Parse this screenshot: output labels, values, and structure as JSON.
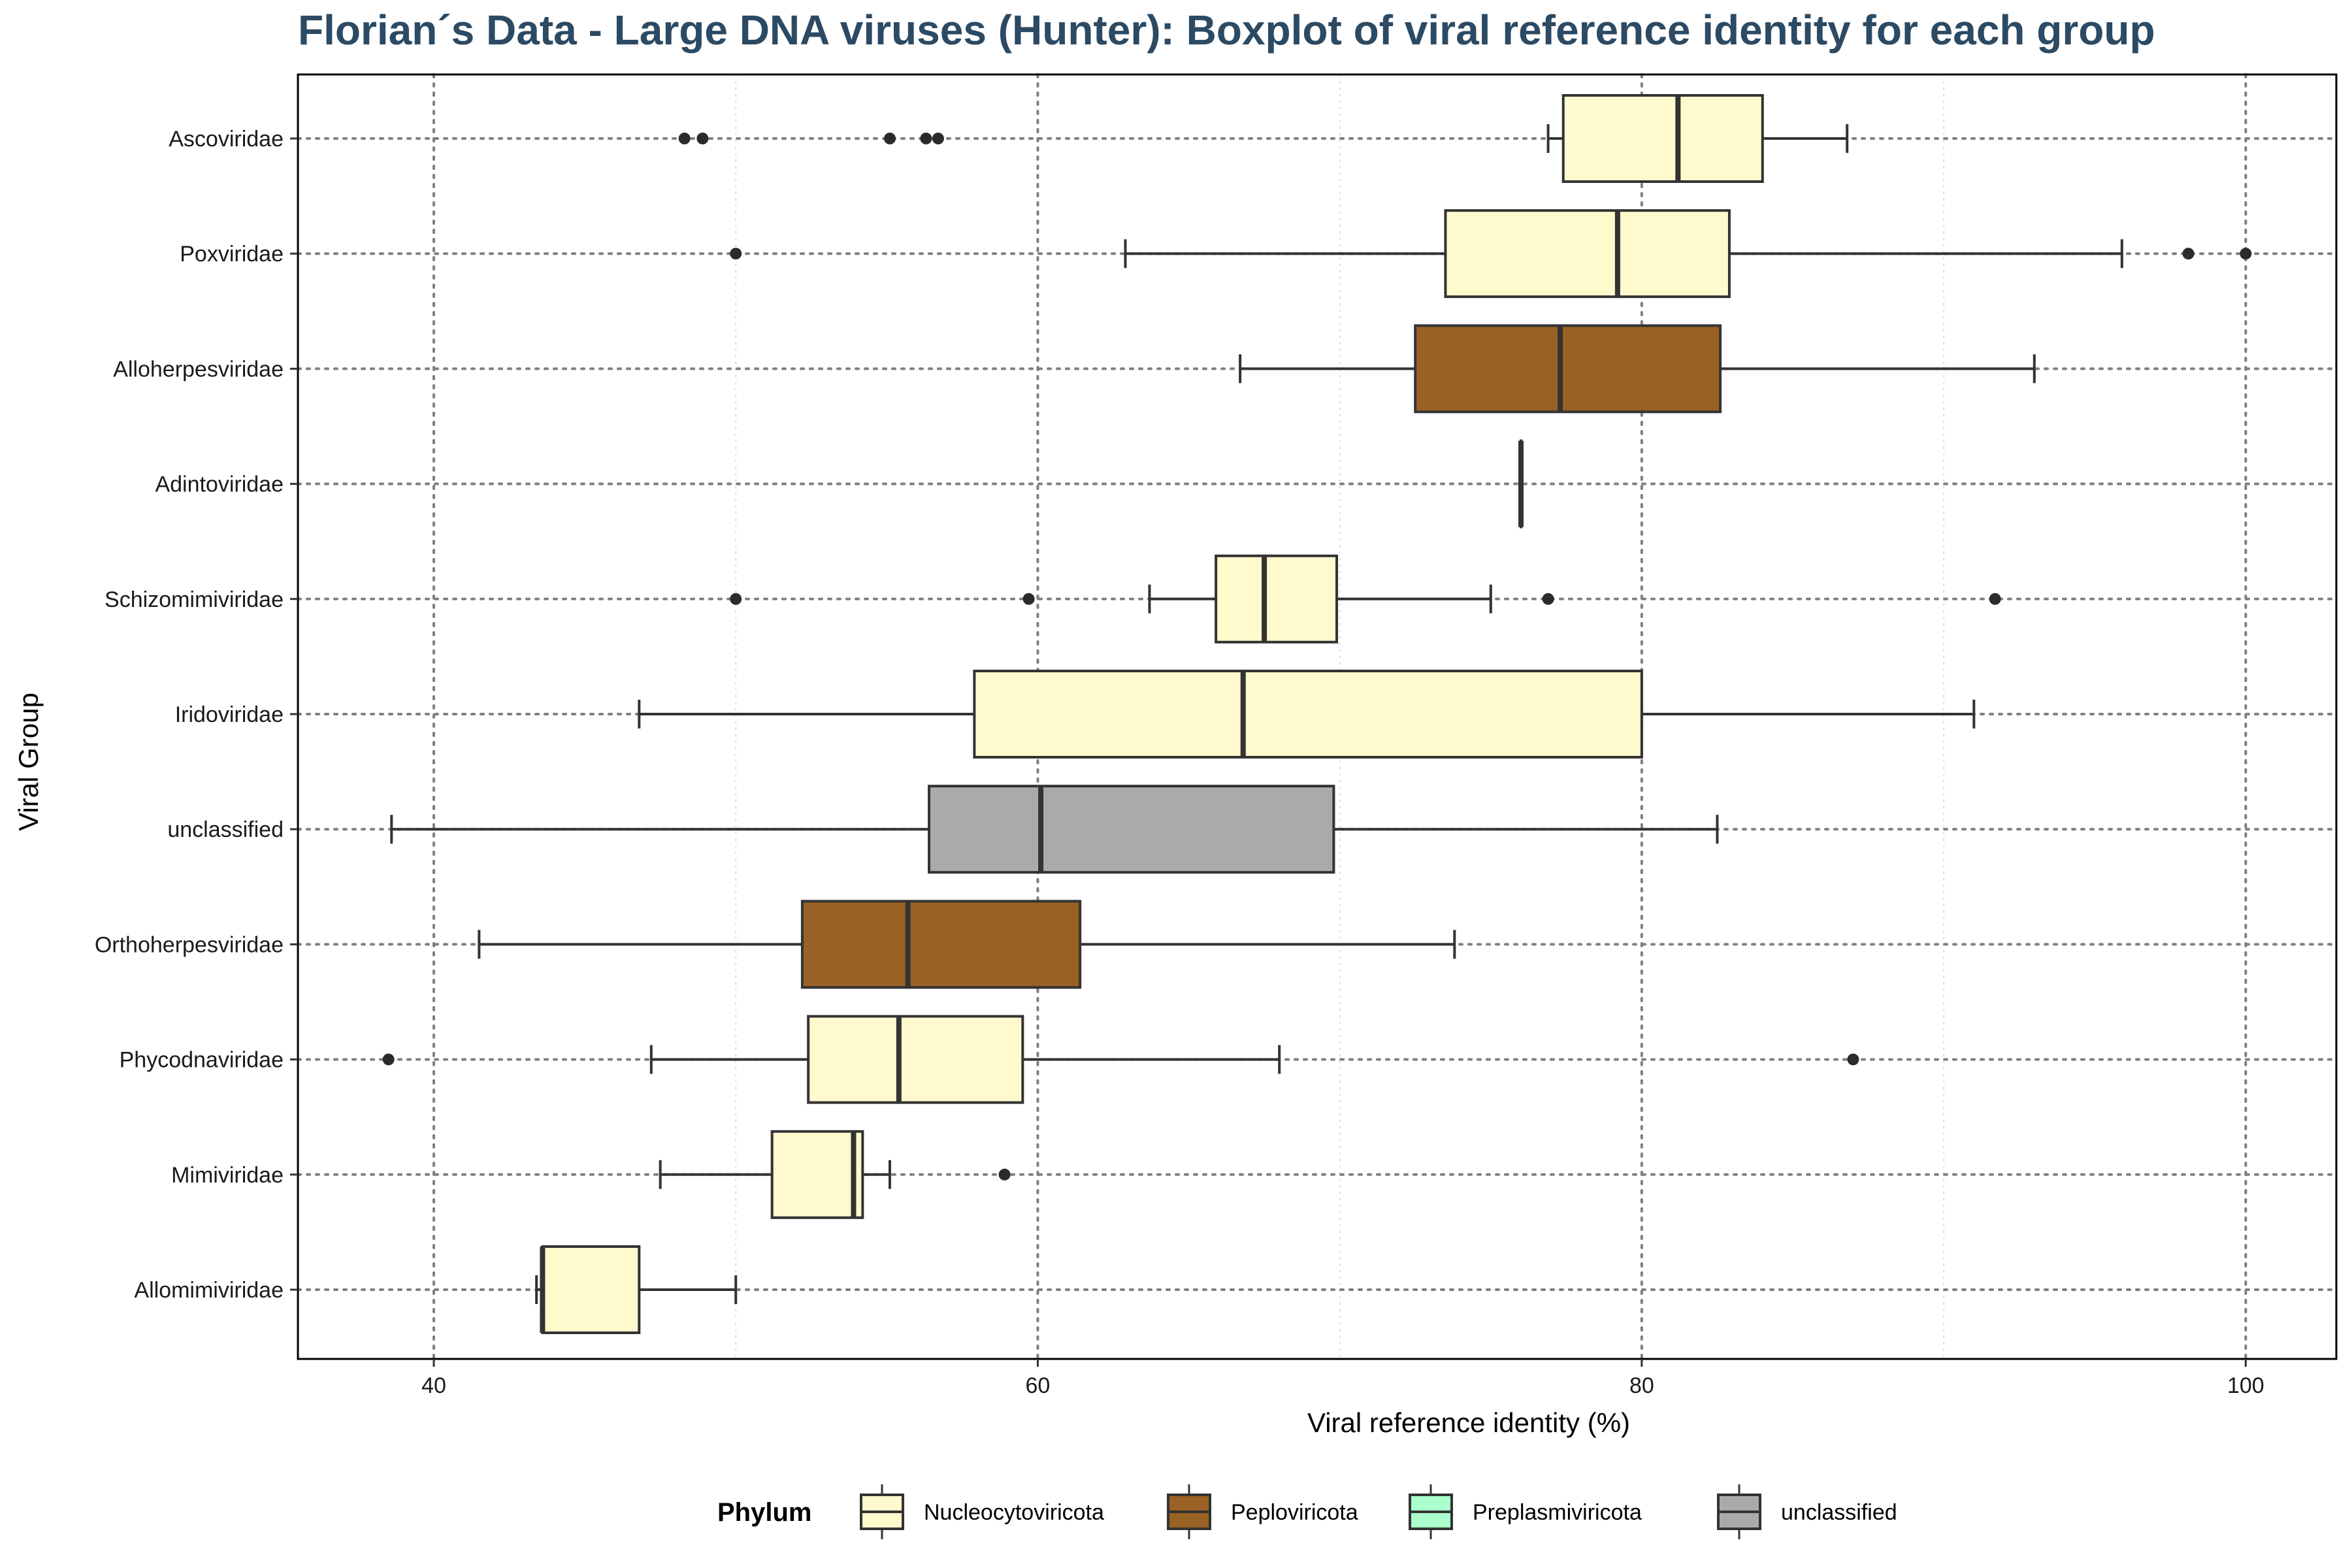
{
  "chart_data": {
    "type": "boxplot",
    "title": "Florian´s Data - Large DNA viruses (Hunter): Boxplot of viral reference identity for each group",
    "xlabel": "Viral reference identity (%)",
    "ylabel": "Viral Group",
    "xlim": [
      35.5,
      103.0
    ],
    "x_ticks": [
      40,
      60,
      80,
      100
    ],
    "grid": "on",
    "legend": {
      "title": "Phylum",
      "placement": "bottom",
      "entries": [
        {
          "label": "Nucleocytoviricota",
          "color": "#fffacd"
        },
        {
          "label": "Peploviricota",
          "color": "#9a6124"
        },
        {
          "label": "Preplasmiviricota",
          "color": "#aaffcc"
        },
        {
          "label": "unclassified",
          "color": "#aaaaaa"
        }
      ]
    },
    "groups": [
      {
        "name": "Ascoviridae",
        "phylum": "Nucleocytoviricota",
        "whisker_low": 76.9,
        "q1": 77.4,
        "median": 81.2,
        "q3": 84.0,
        "whisker_high": 86.8,
        "outliers": [
          48.3,
          48.9,
          55.1,
          56.3,
          56.7
        ]
      },
      {
        "name": "Poxviridae",
        "phylum": "Nucleocytoviricota",
        "whisker_low": 62.9,
        "q1": 73.5,
        "median": 79.2,
        "q3": 82.9,
        "whisker_high": 95.9,
        "outliers": [
          50.0,
          98.1,
          100.0
        ]
      },
      {
        "name": "Alloherpesviridae",
        "phylum": "Peploviricota",
        "whisker_low": 66.7,
        "q1": 72.5,
        "median": 77.3,
        "q3": 82.6,
        "whisker_high": 93.0,
        "outliers": []
      },
      {
        "name": "Adintoviridae",
        "phylum": "Preplasmiviricota",
        "whisker_low": 76.0,
        "q1": 76.0,
        "median": 76.0,
        "q3": 76.0,
        "whisker_high": 76.0,
        "outliers": []
      },
      {
        "name": "Schizomimiviridae",
        "phylum": "Nucleocytoviricota",
        "whisker_low": 63.7,
        "q1": 65.9,
        "median": 67.5,
        "q3": 69.9,
        "whisker_high": 75.0,
        "outliers": [
          50.0,
          59.7,
          76.9,
          91.7
        ]
      },
      {
        "name": "Iridoviridae",
        "phylum": "Nucleocytoviricota",
        "whisker_low": 46.8,
        "q1": 57.9,
        "median": 66.8,
        "q3": 80.0,
        "whisker_high": 91.0,
        "outliers": []
      },
      {
        "name": "unclassified",
        "phylum": "unclassified",
        "whisker_low": 38.6,
        "q1": 56.4,
        "median": 60.1,
        "q3": 69.8,
        "whisker_high": 82.5,
        "outliers": []
      },
      {
        "name": "Orthoherpesviridae",
        "phylum": "Peploviricota",
        "whisker_low": 41.5,
        "q1": 52.2,
        "median": 55.7,
        "q3": 61.4,
        "whisker_high": 73.8,
        "outliers": []
      },
      {
        "name": "Phycodnaviridae",
        "phylum": "Nucleocytoviricota",
        "whisker_low": 47.2,
        "q1": 52.4,
        "median": 55.4,
        "q3": 59.5,
        "whisker_high": 68.0,
        "outliers": [
          38.5,
          87.0
        ]
      },
      {
        "name": "Mimiviridae",
        "phylum": "Nucleocytoviricota",
        "whisker_low": 47.5,
        "q1": 51.2,
        "median": 53.9,
        "q3": 54.2,
        "whisker_high": 55.1,
        "outliers": [
          58.9
        ]
      },
      {
        "name": "Allomimiviridae",
        "phylum": "Nucleocytoviricota",
        "whisker_low": 43.4,
        "q1": 43.6,
        "median": 43.6,
        "q3": 46.8,
        "whisker_high": 50.0,
        "outliers": []
      }
    ]
  }
}
